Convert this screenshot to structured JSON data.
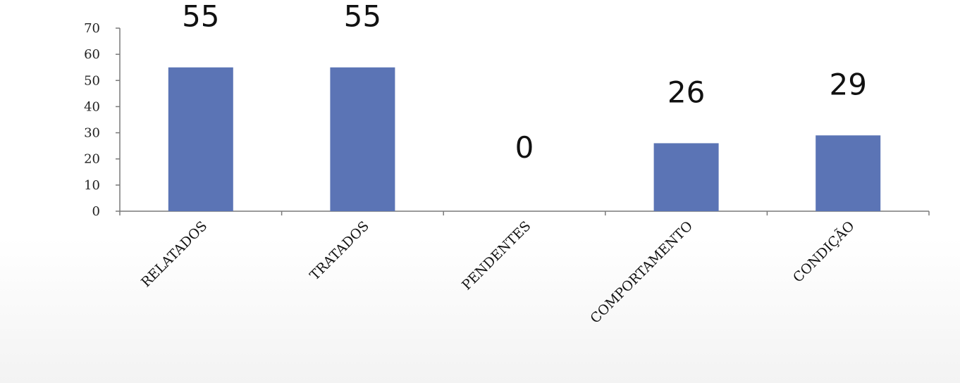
{
  "chart_data": {
    "type": "bar",
    "categories": [
      "RELATADOS",
      "TRATADOS",
      "PENDENTES",
      "COMPORTAMENTO",
      "CONDIÇÃO"
    ],
    "values": [
      55,
      55,
      0,
      26,
      29
    ],
    "data_labels": [
      "55",
      "55",
      "0",
      "26",
      "29"
    ],
    "title": "",
    "xlabel": "",
    "ylabel": "",
    "ylim": [
      0,
      70
    ],
    "yticks": [
      0,
      10,
      20,
      30,
      40,
      50,
      60,
      70
    ],
    "grid": false,
    "legend": "none",
    "colors": {
      "bar": "#5b74b5",
      "axis": "#7a7a7a",
      "text": "#111111"
    }
  }
}
